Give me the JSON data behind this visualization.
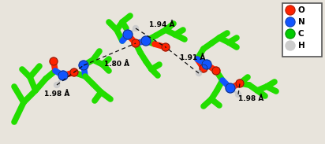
{
  "bg_color": "#e8e4dc",
  "figsize": [
    4.12,
    1.83
  ],
  "dpi": 100,
  "legend": {
    "items": [
      "O",
      "N",
      "C",
      "H"
    ],
    "colors": [
      "#ff2200",
      "#1155ff",
      "#00cc00",
      "#cccccc"
    ]
  }
}
